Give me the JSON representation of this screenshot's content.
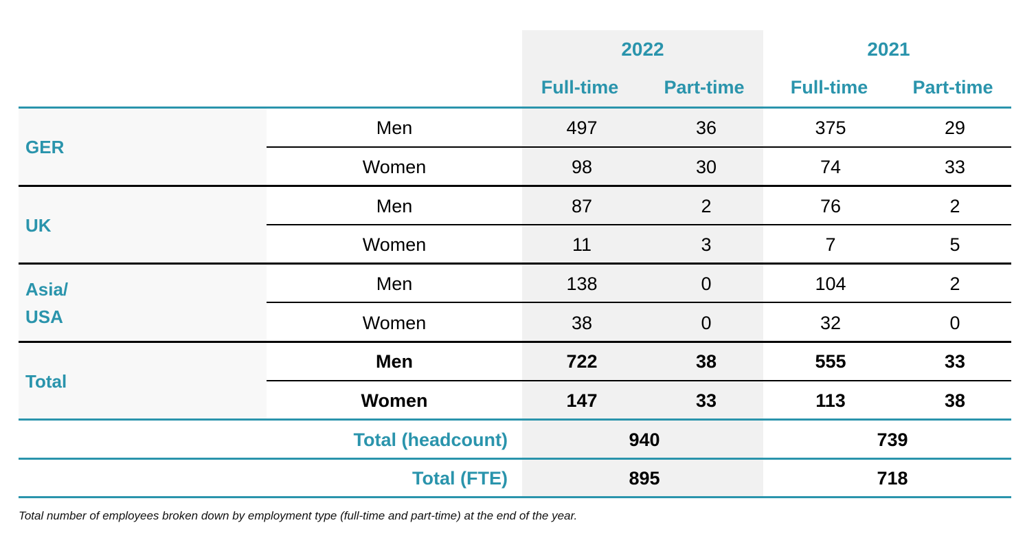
{
  "header": {
    "years": [
      {
        "label": "2022",
        "full_time": "Full-time",
        "part_time": "Part-time"
      },
      {
        "label": "2021",
        "full_time": "Full-time",
        "part_time": "Part-time"
      }
    ]
  },
  "groups": [
    {
      "name": "GER",
      "rows": [
        {
          "label": "Men",
          "values": [
            "497",
            "36",
            "375",
            "29"
          ]
        },
        {
          "label": "Women",
          "values": [
            "98",
            "30",
            "74",
            "33"
          ]
        }
      ]
    },
    {
      "name": "UK",
      "rows": [
        {
          "label": "Men",
          "values": [
            "87",
            "2",
            "76",
            "2"
          ]
        },
        {
          "label": "Women",
          "values": [
            "11",
            "3",
            "7",
            "5"
          ]
        }
      ]
    },
    {
      "name_line1": "Asia/",
      "name_line2": "USA",
      "rows": [
        {
          "label": "Men",
          "values": [
            "138",
            "0",
            "104",
            "2"
          ]
        },
        {
          "label": "Women",
          "values": [
            "38",
            "0",
            "32",
            "0"
          ]
        }
      ]
    },
    {
      "name": "Total",
      "rows": [
        {
          "label": "Men",
          "values": [
            "722",
            "38",
            "555",
            "33"
          ]
        },
        {
          "label": "Women",
          "values": [
            "147",
            "33",
            "113",
            "38"
          ]
        }
      ]
    }
  ],
  "totals": {
    "headcount": {
      "label": "Total (headcount)",
      "y2022": "940",
      "y2021": "739"
    },
    "fte": {
      "label": "Total (FTE)",
      "y2022": "895",
      "y2021": "718"
    }
  },
  "caption": "Total number of employees broken down by employment type (full-time and part-time) at the end of the year.",
  "colors": {
    "accent": "#2a94ac",
    "shade": "#f1f1f1"
  }
}
